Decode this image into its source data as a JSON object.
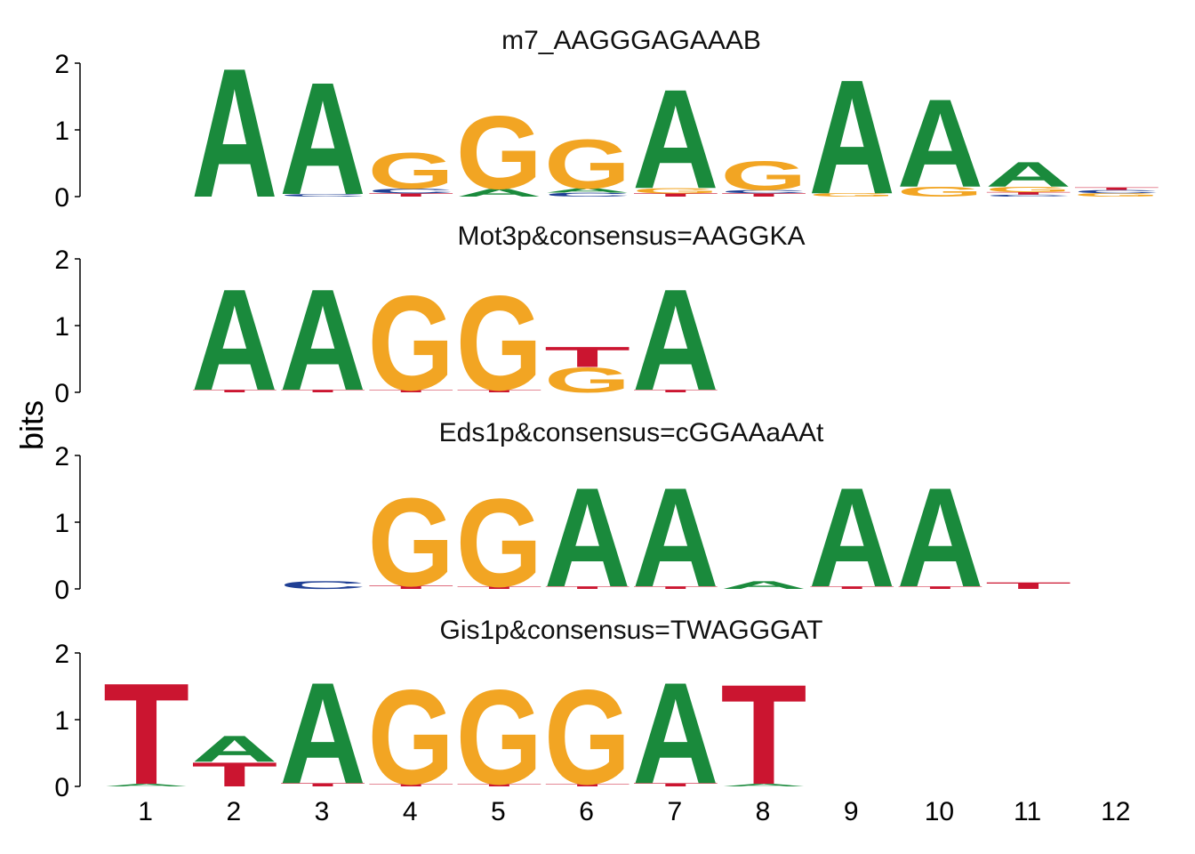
{
  "chart_data": {
    "type": "sequence-logo",
    "ylabel": "bits",
    "ylim": [
      0,
      2
    ],
    "yticks": [
      0,
      1,
      2
    ],
    "xticks": [
      1,
      2,
      3,
      4,
      5,
      6,
      7,
      8,
      9,
      10,
      11,
      12
    ],
    "colors": {
      "A": "#1a8a3c",
      "C": "#1f3f94",
      "G": "#f2a523",
      "T": "#cb1530"
    },
    "panels": [
      {
        "title": "m7_AAGGGAGAAAB",
        "start": 2,
        "columns": [
          [
            [
              "A",
              1.98
            ]
          ],
          [
            [
              "C",
              0.04
            ],
            [
              "A",
              1.72
            ]
          ],
          [
            [
              "T",
              0.05
            ],
            [
              "C",
              0.07
            ],
            [
              "G",
              0.55
            ]
          ],
          [
            [
              "A",
              0.12
            ],
            [
              "G",
              1.12
            ]
          ],
          [
            [
              "C",
              0.06
            ],
            [
              "A",
              0.07
            ],
            [
              "G",
              0.75
            ]
          ],
          [
            [
              "T",
              0.05
            ],
            [
              "G",
              0.08
            ],
            [
              "A",
              1.52
            ]
          ],
          [
            [
              "T",
              0.05
            ],
            [
              "C",
              0.05
            ],
            [
              "G",
              0.44
            ]
          ],
          [
            [
              "G",
              0.05
            ],
            [
              "A",
              1.75
            ]
          ],
          [
            [
              "G",
              0.15
            ],
            [
              "A",
              1.35
            ]
          ],
          [
            [
              "C",
              0.03
            ],
            [
              "T",
              0.04
            ],
            [
              "G",
              0.08
            ],
            [
              "A",
              0.38
            ]
          ],
          [
            [
              "G",
              0.05
            ],
            [
              "C",
              0.05
            ],
            [
              "T",
              0.04
            ]
          ]
        ]
      },
      {
        "title": "Mot3p&consensus=AAGGKA",
        "start": 2,
        "columns": [
          [
            [
              "T",
              0.04
            ],
            [
              "A",
              1.55
            ]
          ],
          [
            [
              "T",
              0.04
            ],
            [
              "A",
              1.55
            ]
          ],
          [
            [
              "T",
              0.04
            ],
            [
              "G",
              1.45
            ]
          ],
          [
            [
              "T",
              0.04
            ],
            [
              "G",
              1.45
            ]
          ],
          [
            [
              "G",
              0.38
            ],
            [
              "T",
              0.31
            ]
          ],
          [
            [
              "T",
              0.04
            ],
            [
              "A",
              1.55
            ]
          ]
        ]
      },
      {
        "title": "Eds1p&consensus=cGGAAaAAt",
        "start": 3,
        "columns": [
          [
            [
              "C",
              0.12
            ]
          ],
          [
            [
              "T",
              0.05
            ],
            [
              "G",
              1.35
            ]
          ],
          [
            [
              "T",
              0.04
            ],
            [
              "G",
              1.35
            ]
          ],
          [
            [
              "T",
              0.04
            ],
            [
              "A",
              1.52
            ]
          ],
          [
            [
              "T",
              0.04
            ],
            [
              "A",
              1.52
            ]
          ],
          [
            [
              "A",
              0.12
            ]
          ],
          [
            [
              "T",
              0.04
            ],
            [
              "A",
              1.52
            ]
          ],
          [
            [
              "T",
              0.04
            ],
            [
              "A",
              1.52
            ]
          ],
          [
            [
              "T",
              0.1
            ]
          ]
        ]
      },
      {
        "title": "Gis1p&consensus=TWAGGGAT",
        "start": 1,
        "columns": [
          [
            [
              "A",
              0.04
            ],
            [
              "T",
              1.55
            ]
          ],
          [
            [
              "T",
              0.37
            ],
            [
              "A",
              0.4
            ]
          ],
          [
            [
              "T",
              0.05
            ],
            [
              "A",
              1.55
            ]
          ],
          [
            [
              "T",
              0.04
            ],
            [
              "G",
              1.45
            ]
          ],
          [
            [
              "T",
              0.04
            ],
            [
              "G",
              1.45
            ]
          ],
          [
            [
              "T",
              0.04
            ],
            [
              "G",
              1.45
            ]
          ],
          [
            [
              "T",
              0.05
            ],
            [
              "A",
              1.55
            ]
          ],
          [
            [
              "A",
              0.04
            ],
            [
              "T",
              1.53
            ]
          ]
        ]
      }
    ]
  }
}
